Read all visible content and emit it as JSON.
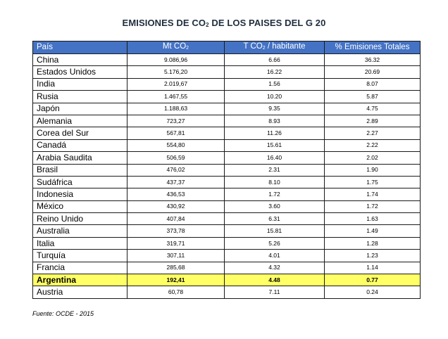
{
  "title": {
    "before": "EMISIONES DE CO",
    "sub": "2",
    "after": " DE LOS PAISES DEL G 20"
  },
  "columns": {
    "country": "País",
    "mt_pre": "Mt CO",
    "mt_sub": "2",
    "per_pre": "T CO",
    "per_sub": "2",
    "per_post": " / habitante",
    "pct": "% Emisiones Totales"
  },
  "rows": [
    {
      "country": "China",
      "mt": "9.086,96",
      "per_capita": "6.66",
      "pct": "36.32"
    },
    {
      "country": "Estados Unidos",
      "mt": "5.176,20",
      "per_capita": "16.22",
      "pct": "20.69"
    },
    {
      "country": "India",
      "mt": "2.019,67",
      "per_capita": "1.56",
      "pct": "8.07"
    },
    {
      "country": "Rusia",
      "mt": "1.467,55",
      "per_capita": "10.20",
      "pct": "5.87"
    },
    {
      "country": "Japón",
      "mt": "1.188,63",
      "per_capita": "9.35",
      "pct": "4.75"
    },
    {
      "country": "Alemania",
      "mt": "723,27",
      "per_capita": "8.93",
      "pct": "2.89"
    },
    {
      "country": "Corea del Sur",
      "mt": "567,81",
      "per_capita": "11.26",
      "pct": "2.27"
    },
    {
      "country": "Canadá",
      "mt": "554,80",
      "per_capita": "15.61",
      "pct": "2.22"
    },
    {
      "country": "Arabia Saudita",
      "mt": "506,59",
      "per_capita": "16.40",
      "pct": "2.02"
    },
    {
      "country": "Brasil",
      "mt": "476,02",
      "per_capita": "2.31",
      "pct": "1.90"
    },
    {
      "country": "Sudáfrica",
      "mt": "437,37",
      "per_capita": "8.10",
      "pct": "1.75"
    },
    {
      "country": "Indonesia",
      "mt": "436,53",
      "per_capita": "1.72",
      "pct": "1.74"
    },
    {
      "country": "México",
      "mt": "430,92",
      "per_capita": "3.60",
      "pct": "1.72"
    },
    {
      "country": "Reino Unido",
      "mt": "407,84",
      "per_capita": "6.31",
      "pct": "1.63"
    },
    {
      "country": "Australia",
      "mt": "373,78",
      "per_capita": "15.81",
      "pct": "1.49"
    },
    {
      "country": "Italia",
      "mt": "319,71",
      "per_capita": "5.26",
      "pct": "1.28"
    },
    {
      "country": "Turquía",
      "mt": "307,11",
      "per_capita": "4.01",
      "pct": "1.23"
    },
    {
      "country": "Francia",
      "mt": "285,68",
      "per_capita": "4.32",
      "pct": "1.14"
    },
    {
      "country": "Argentina",
      "mt": "192,41",
      "per_capita": "4.48",
      "pct": "0.77",
      "highlight": true
    },
    {
      "country": "Austria",
      "mt": "60,78",
      "per_capita": "7.11",
      "pct": "0.24"
    }
  ],
  "colors": {
    "header_bg": "#4472c4",
    "highlight_bg": "#ffff66",
    "title": "#1f2d3d"
  },
  "source": "Fuente: OCDE - 2015"
}
